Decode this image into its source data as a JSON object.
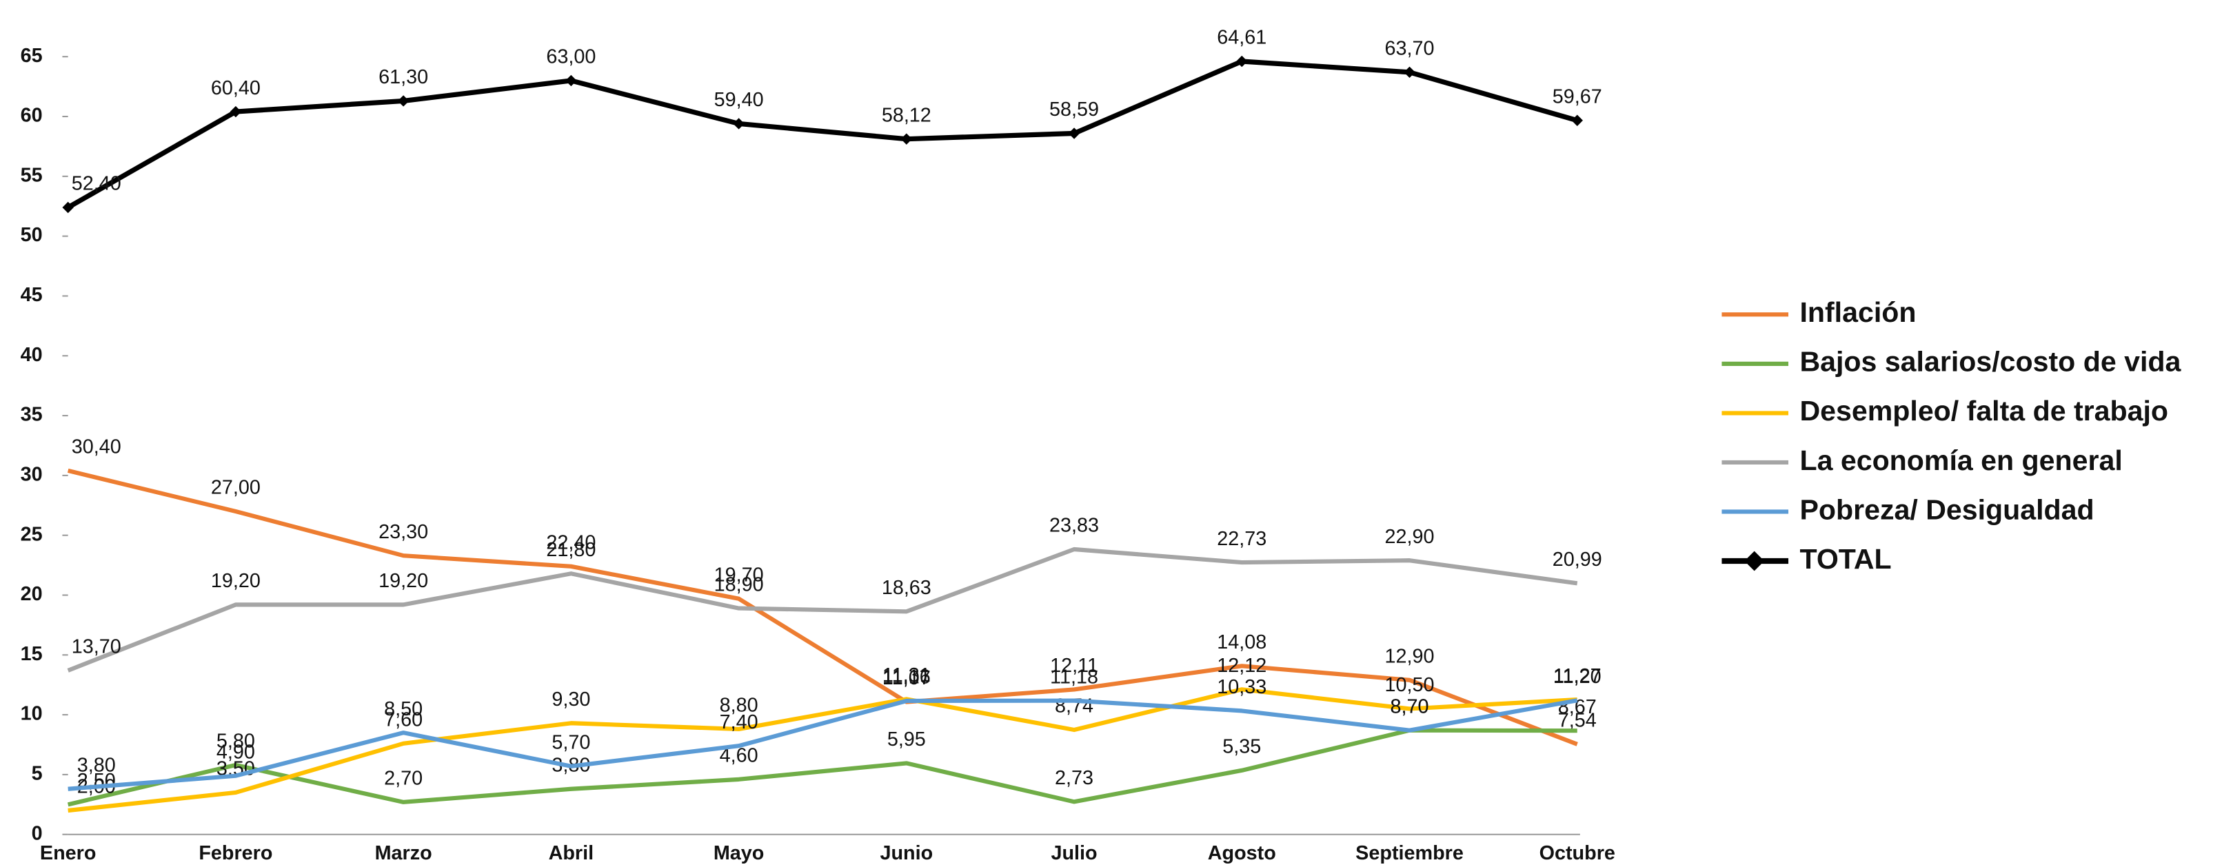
{
  "chart_data": {
    "type": "line",
    "categories": [
      "Enero",
      "Febrero",
      "Marzo",
      "Abril",
      "Mayo",
      "Junio",
      "Julio",
      "Agosto",
      "Septiembre",
      "Octubre"
    ],
    "ylim": [
      0,
      65
    ],
    "yticks": [
      0,
      5,
      10,
      15,
      20,
      25,
      30,
      35,
      40,
      45,
      50,
      55,
      60,
      65
    ],
    "legend": "right",
    "series": [
      {
        "name": "Inflación",
        "color": "#ED7D31",
        "values": [
          30.4,
          27.0,
          23.3,
          22.4,
          19.7,
          11.07,
          12.11,
          14.08,
          12.9,
          7.54
        ],
        "value_labels": [
          "30,40",
          "27,00",
          "23,30",
          "22,40",
          "19,70",
          "11,07",
          "12,11",
          "14,08",
          "12,90",
          "7,54"
        ]
      },
      {
        "name": "Bajos salarios/costo de vida",
        "color": "#70AD47",
        "values": [
          2.5,
          5.8,
          2.7,
          3.8,
          4.6,
          5.95,
          2.73,
          5.35,
          8.7,
          8.67
        ],
        "value_labels": [
          "2,50",
          "5,80",
          "2,70",
          "3,80",
          "4,60",
          "5,95",
          "2,73",
          "5,35",
          "8,70",
          "8,67"
        ]
      },
      {
        "name": "Desempleo/ falta de trabajo",
        "color": "#FFC000",
        "values": [
          2.0,
          3.5,
          7.6,
          9.3,
          8.8,
          11.31,
          8.74,
          12.12,
          10.5,
          11.27
        ],
        "value_labels": [
          "2,00",
          "3,50",
          "7,60",
          "9,30",
          "8,80",
          "11,31",
          "8,74",
          "12,12",
          "10,50",
          "11,27"
        ]
      },
      {
        "name": "La economía en general",
        "color": "#A5A5A5",
        "values": [
          13.7,
          19.2,
          19.2,
          21.8,
          18.9,
          18.63,
          23.83,
          22.73,
          22.9,
          20.99
        ],
        "value_labels": [
          "13,70",
          "19,20",
          "19,20",
          "21,80",
          "18,90",
          "18,63",
          "23,83",
          "22,73",
          "22,90",
          "20,99"
        ]
      },
      {
        "name": "Pobreza/ Desigualdad",
        "color": "#5B9BD5",
        "values": [
          3.8,
          4.9,
          8.5,
          5.7,
          7.4,
          11.16,
          11.18,
          10.33,
          8.7,
          11.2
        ],
        "value_labels": [
          "3,80",
          "4,90",
          "8,50",
          "5,70",
          "7,40",
          "11,16",
          "11,18",
          "10,33",
          "8,70",
          "11,20"
        ]
      },
      {
        "name": "TOTAL",
        "color": "#000000",
        "marker": "diamond",
        "values": [
          52.4,
          60.4,
          61.3,
          63.0,
          59.4,
          58.12,
          58.59,
          64.61,
          63.7,
          59.67
        ],
        "value_labels": [
          "52,40",
          "60,40",
          "61,30",
          "63,00",
          "59,40",
          "58,12",
          "58,59",
          "64,61",
          "63,70",
          "59,67"
        ]
      }
    ]
  }
}
